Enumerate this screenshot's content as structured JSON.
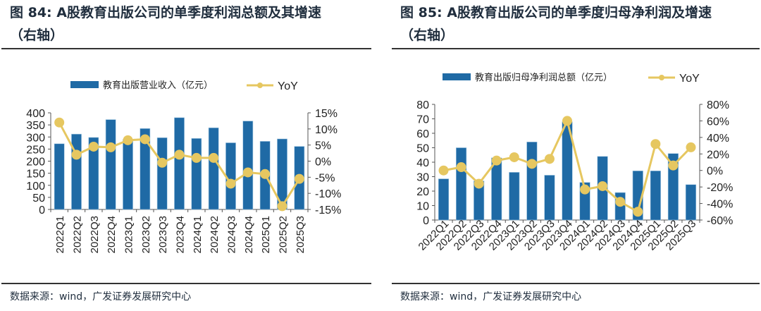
{
  "panels": [
    {
      "title_line1": "图 84: A股教育出版公司的单季度利润总额及其增速",
      "title_line2": "（右轴）",
      "source": "数据来源：wind，广发证券发展研究中心"
    },
    {
      "title_line1": "图 85: A股教育出版公司的单季度归母净利润及增速",
      "title_line2": "（右轴）",
      "source": "数据来源：wind，广发证券发展研究中心"
    }
  ],
  "colors": {
    "bar": "#1f6aa5",
    "line": "#e6c760"
  },
  "chart_data": [
    {
      "type": "bar+line",
      "categories": [
        "2022Q1",
        "2022Q2",
        "2022Q3",
        "2022Q4",
        "2023Q1",
        "2023Q2",
        "2023Q3",
        "2023Q4",
        "2024Q1",
        "2024Q2",
        "2024Q3",
        "2024Q4",
        "2025Q1",
        "2025Q2",
        "2025Q3"
      ],
      "series": [
        {
          "name": "教育出版营业收入（亿元）",
          "axis": "left",
          "type": "bar",
          "values": [
            272,
            312,
            298,
            372,
            290,
            335,
            297,
            380,
            294,
            338,
            276,
            366,
            282,
            292,
            261
          ]
        },
        {
          "name": "YoY",
          "axis": "right",
          "type": "line",
          "values": [
            12,
            2,
            4.5,
            4.3,
            6.5,
            6.8,
            -0.5,
            2,
            1,
            1,
            -7,
            -3.5,
            -4,
            -14,
            -5.5
          ]
        }
      ],
      "ylim": [
        0,
        400
      ],
      "yticks": [
        0,
        50,
        100,
        150,
        200,
        250,
        300,
        350,
        400
      ],
      "y2lim": [
        -15,
        15
      ],
      "y2ticks": [
        -15,
        -10,
        -5,
        0,
        5,
        10,
        15
      ],
      "y2suffix": "%",
      "legend": "top",
      "xlabel_rotation": -90
    },
    {
      "type": "bar+line",
      "categories": [
        "2022Q1",
        "2022Q2",
        "2022Q3",
        "2022Q4",
        "2023Q1",
        "2023Q2",
        "2023Q3",
        "2023Q4",
        "2024Q1",
        "2024Q2",
        "2024Q3",
        "2024Q4",
        "2025Q1",
        "2025Q2",
        "2025Q3"
      ],
      "series": [
        {
          "name": "教育出版归母净利润总额（亿元）",
          "axis": "left",
          "type": "bar",
          "values": [
            28.5,
            50,
            27,
            43,
            33,
            54,
            31,
            68,
            26,
            44,
            19,
            34,
            34,
            46,
            24.5
          ]
        },
        {
          "name": "YoY",
          "axis": "right",
          "type": "line",
          "values": [
            0,
            4,
            -16,
            12,
            16,
            8,
            14,
            60,
            -23,
            -19,
            -38,
            -50,
            32,
            6,
            28
          ]
        }
      ],
      "ylim": [
        0,
        80
      ],
      "yticks": [
        0,
        10,
        20,
        30,
        40,
        50,
        60,
        70,
        80
      ],
      "y2lim": [
        -60,
        80
      ],
      "y2ticks": [
        -60,
        -40,
        -20,
        0,
        20,
        40,
        60,
        80
      ],
      "y2suffix": "%",
      "legend": "top",
      "xlabel_rotation": -45
    }
  ]
}
